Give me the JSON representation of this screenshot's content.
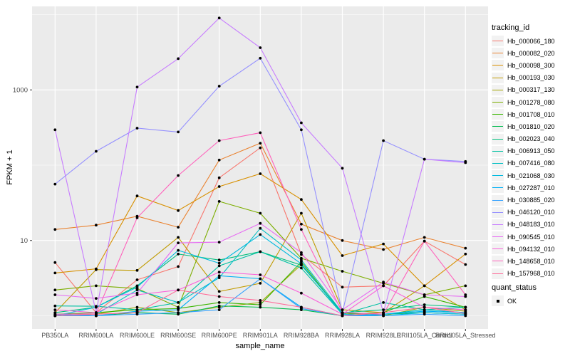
{
  "figure": {
    "background": "#FFFFFF",
    "panel_background": "#EBEBEB",
    "grid_color": "#FFFFFF",
    "tick_label_color": "#4D4D4D",
    "tick_mark_color": "#333333",
    "point_color": "#000000"
  },
  "chart_data": {
    "type": "line",
    "title": "",
    "xlabel": "sample_name",
    "ylabel": "FPKM + 1",
    "y_scale": "log10",
    "ylim": [
      0.67,
      12400
    ],
    "grid": true,
    "legend_position": "right",
    "y_ticks": [
      {
        "value": 10,
        "label": "10"
      },
      {
        "value": 1000,
        "label": "1000"
      }
    ],
    "y_minor_breaks": [
      1,
      100,
      10000
    ],
    "categories": [
      "PB350LA",
      "RRIM600LA",
      "RRIM600LE",
      "RRIM600SE",
      "RRIM600PE",
      "RRIM901LA",
      "RRIM928BA",
      "RRIM928LA",
      "RRIM928LE",
      "RRII105LA_Control",
      "RRII105LA_Stressed"
    ],
    "series": [
      {
        "name": "Hb_000066_180",
        "color": "#F8766D",
        "values": [
          5.1,
          1.1,
          3.0,
          4.5,
          68,
          170,
          6.5,
          2.4,
          2.5,
          9.8,
          4.8
        ]
      },
      {
        "name": "Hb_000082_020",
        "color": "#EA8331",
        "values": [
          14,
          16,
          21,
          15,
          117,
          196,
          16.5,
          10,
          7.6,
          11,
          7.9
        ]
      },
      {
        "name": "Hb_000098_300",
        "color": "#D89000",
        "values": [
          3.7,
          4.2,
          39,
          25,
          52,
          77,
          35,
          6.3,
          9,
          2.5,
          6.6
        ]
      },
      {
        "name": "Hb_000193_030",
        "color": "#C09B00",
        "values": [
          1.1,
          4.1,
          4.0,
          11,
          2.1,
          2.7,
          23,
          1.2,
          1.1,
          2.5,
          1.2
        ]
      },
      {
        "name": "Hb_000317_130",
        "color": "#A3A500",
        "values": [
          1.0,
          1.05,
          1.3,
          1.1,
          1.3,
          1.5,
          4.8,
          1.1,
          1.0,
          1.3,
          1.15
        ]
      },
      {
        "name": "Hb_001278_080",
        "color": "#7CAE00",
        "values": [
          2.2,
          2.5,
          2.3,
          1.3,
          33,
          23,
          5.8,
          3.9,
          2.7,
          1.9,
          2.5
        ]
      },
      {
        "name": "Hb_001708_010",
        "color": "#39B600",
        "values": [
          1.05,
          1.1,
          1.2,
          1.25,
          1.5,
          1.4,
          5.2,
          1.05,
          1.1,
          1.8,
          1.3
        ]
      },
      {
        "name": "Hb_001810_020",
        "color": "#00BB4E",
        "values": [
          1.0,
          1.0,
          1.1,
          1.05,
          1.35,
          1.3,
          1.2,
          1.0,
          1.05,
          1.1,
          1.05
        ]
      },
      {
        "name": "Hb_002023_040",
        "color": "#00BF7D",
        "values": [
          1.1,
          1.3,
          2.5,
          6.6,
          5.5,
          7.1,
          4.7,
          1.1,
          1.2,
          1.4,
          1.3
        ]
      },
      {
        "name": "Hb_006913_050",
        "color": "#00C1A3",
        "values": [
          1.35,
          1.34,
          1.2,
          1.5,
          4.6,
          7.1,
          4.3,
          1.05,
          1.5,
          1.2,
          1.3
        ]
      },
      {
        "name": "Hb_007416_080",
        "color": "#00BFC4",
        "values": [
          1.0,
          1.05,
          2.2,
          1.5,
          3.2,
          14.5,
          5.5,
          1.1,
          1.05,
          1.2,
          1.1
        ]
      },
      {
        "name": "Hb_021068_030",
        "color": "#00BAE0",
        "values": [
          1.0,
          1.3,
          2.4,
          7.4,
          5.0,
          12,
          4.9,
          1.05,
          1.0,
          1.1,
          1.05
        ]
      },
      {
        "name": "Hb_027287_010",
        "color": "#00B0F6",
        "values": [
          1.05,
          1.0,
          1.15,
          1.2,
          3.4,
          3.1,
          1.3,
          1.0,
          1.05,
          1.15,
          1.1
        ]
      },
      {
        "name": "Hb_030885_020",
        "color": "#35A2FF",
        "values": [
          1.0,
          1.0,
          1.05,
          1.1,
          1.2,
          3.1,
          1.25,
          1.0,
          1.0,
          1.05,
          1.0
        ]
      },
      {
        "name": "Hb_046120_010",
        "color": "#9590FF",
        "values": [
          56,
          153,
          310,
          276,
          1120,
          2630,
          295,
          1.1,
          212,
          120,
          112
        ]
      },
      {
        "name": "Hb_048183_010",
        "color": "#C77CFF",
        "values": [
          295,
          1.1,
          1090,
          2600,
          9000,
          3630,
          365,
          91,
          1.1,
          120,
          108
        ]
      },
      {
        "name": "Hb_090545_010",
        "color": "#E76BF3",
        "values": [
          1.9,
          1.7,
          2.0,
          9.3,
          9.5,
          16.9,
          6.9,
          1.2,
          2.8,
          1.9,
          1.8
        ]
      },
      {
        "name": "Hb_094132_010",
        "color": "#FA62DB",
        "values": [
          1.2,
          1.1,
          1.9,
          2.2,
          3.8,
          3.5,
          2.0,
          1.05,
          2.5,
          1.3,
          1.2
        ]
      },
      {
        "name": "Hb_148658_010",
        "color": "#FF62BC",
        "values": [
          1.05,
          1.06,
          20,
          73,
          212,
          270,
          14,
          1.1,
          1.05,
          9.8,
          1.9
        ]
      },
      {
        "name": "Hb_157968_010",
        "color": "#FF6A98",
        "values": [
          1.0,
          1.05,
          1.1,
          2.2,
          1.8,
          1.6,
          1.3,
          1.0,
          1.1,
          1.3,
          1.07
        ]
      }
    ],
    "legends": [
      {
        "title": "tracking_id",
        "type": "color"
      },
      {
        "title": "quant_status",
        "type": "shape",
        "items": [
          {
            "label": "OK"
          }
        ]
      }
    ]
  }
}
